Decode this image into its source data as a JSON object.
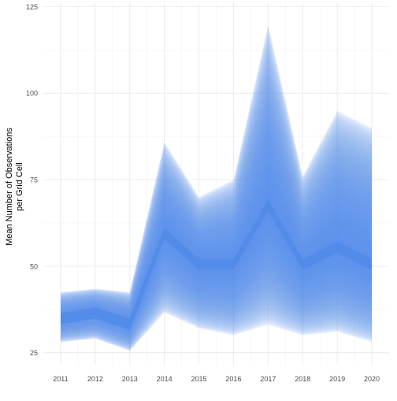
{
  "chart_data": {
    "type": "area",
    "title": "",
    "xlabel": "",
    "ylabel": [
      "Mean Number of Observations",
      "per Grid Cell"
    ],
    "x": [
      2011,
      2012,
      2013,
      2014,
      2015,
      2016,
      2017,
      2018,
      2019,
      2020
    ],
    "xlim": [
      2010.5,
      2020.5
    ],
    "ylim": [
      21.5,
      126
    ],
    "y_ticks": [
      25,
      50,
      75,
      100,
      125
    ],
    "grid": true,
    "legend": "none",
    "series": [
      {
        "values": [
          34.8,
          36.5,
          33.2,
          59.5,
          50.5,
          50.5,
          67.5,
          50.5,
          55.5,
          50.5
        ],
        "lower": [
          28.0,
          29.0,
          25.5,
          36.5,
          32.0,
          30.0,
          33.0,
          30.0,
          31.0,
          28.0
        ],
        "upper": [
          42.5,
          43.5,
          42.5,
          86.0,
          70.0,
          75.0,
          120.0,
          76.0,
          95.0,
          90.0
        ]
      }
    ],
    "colors": {
      "band": "#4a86e8",
      "grid": "#ebebeb",
      "text": "#4d4d4d"
    }
  }
}
